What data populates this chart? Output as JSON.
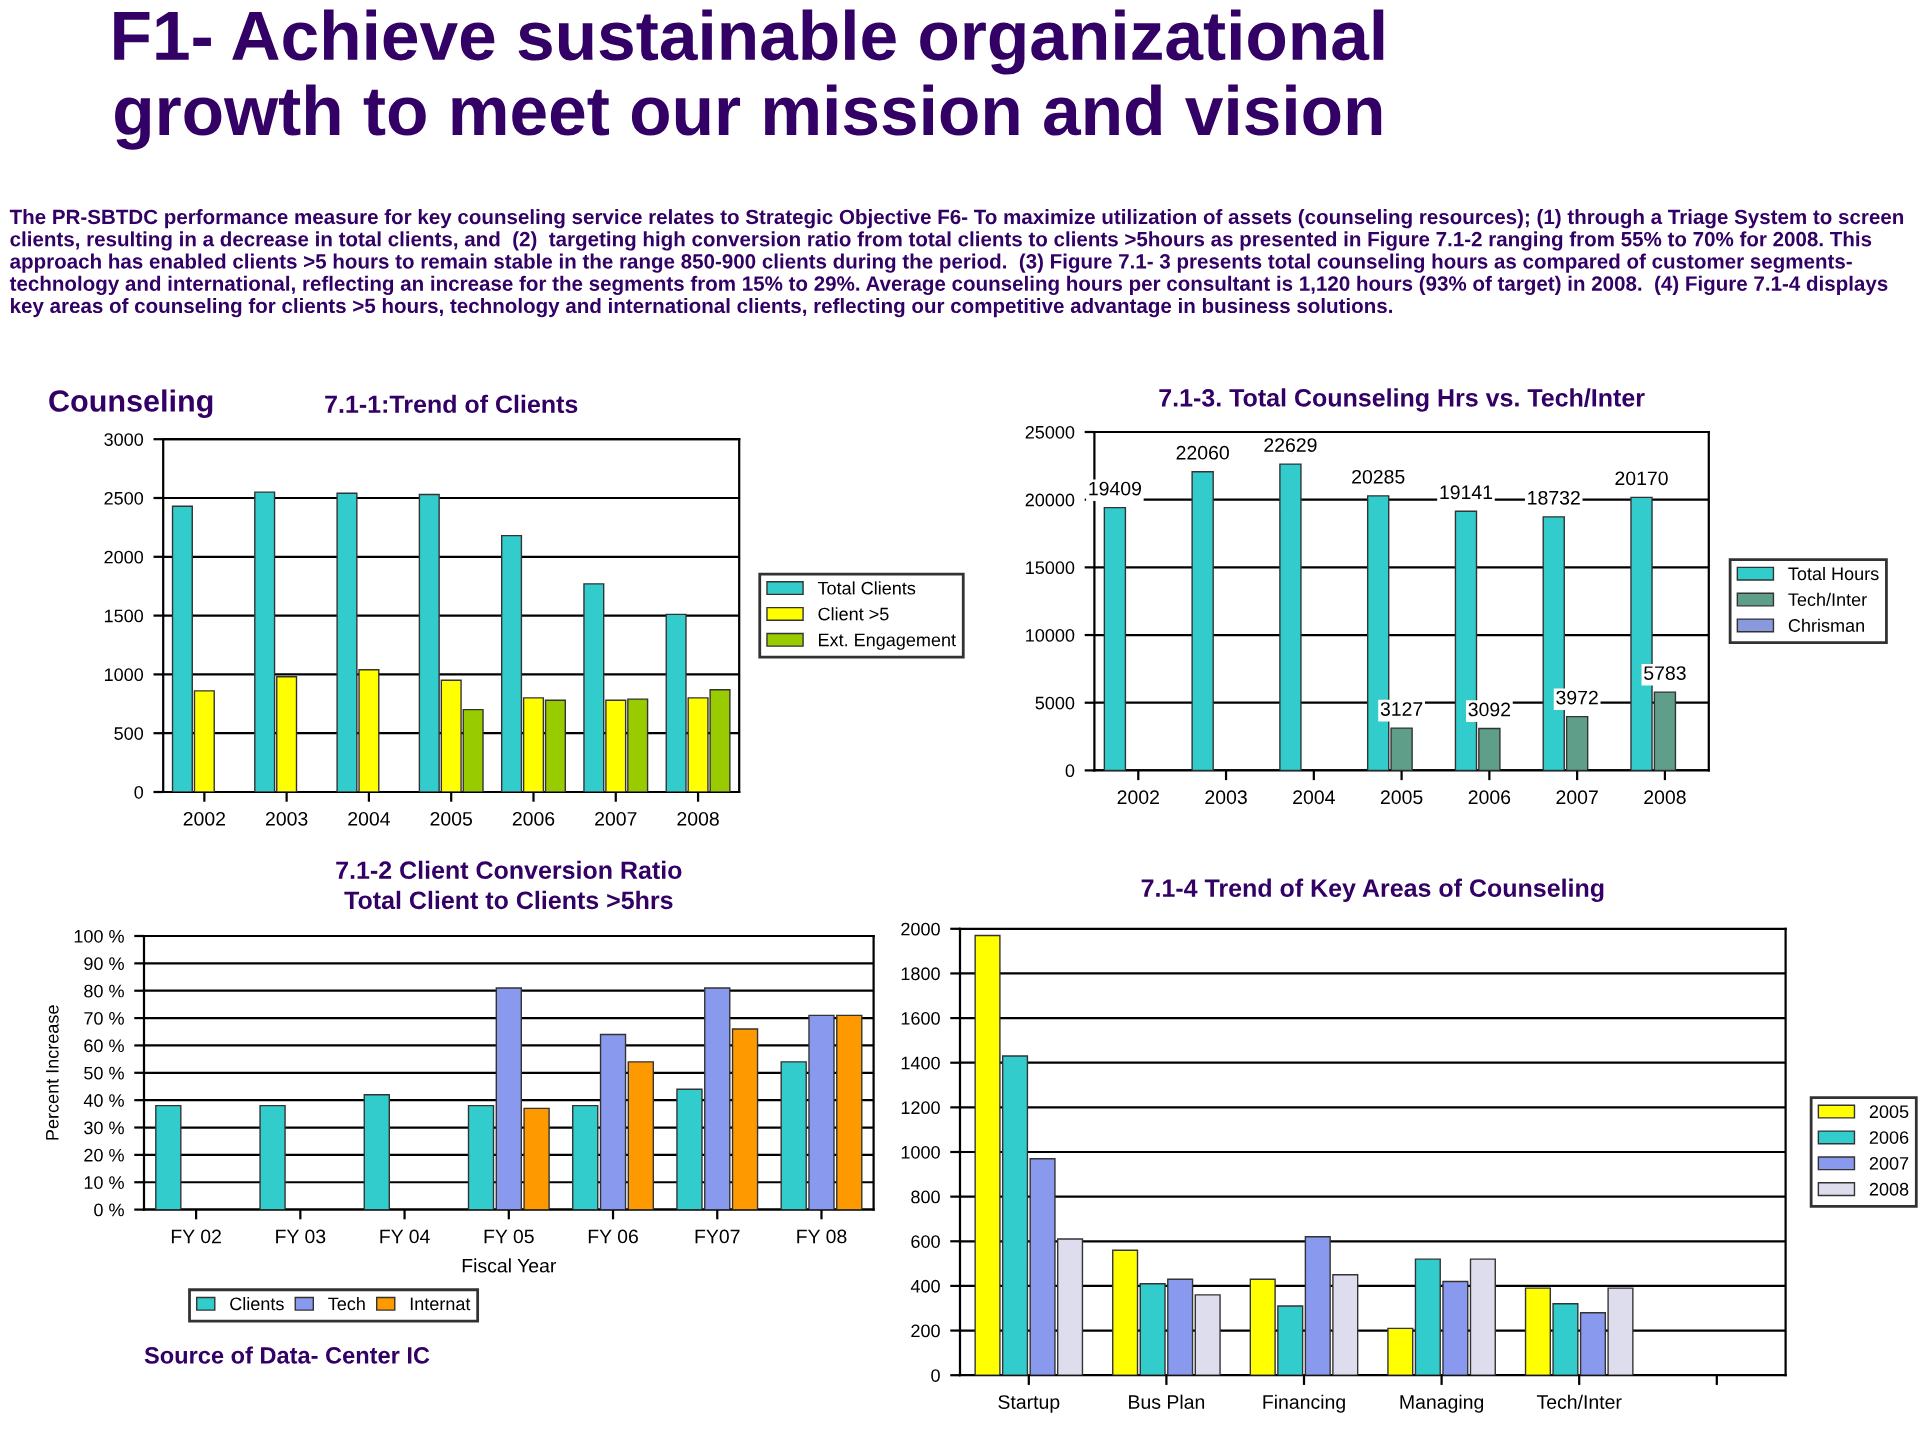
{
  "chart_data": [
    {
      "type": "other",
      "title": "F1- Achieve sustainable organizational growth to meet our mission and vision",
      "annotations": [
        "The PR-SBTDC performance measure for key counseling service relates to Strategic Objective F6- To maximize utilization of assets (counseling resources); (1) through a Triage System to screen clients, resulting in a decrease in total clients, and  (2)  targeting high conversion ratio from total clients to clients >5hours as presented in Figure 7.1-2 ranging from 55% to 70% for 2008. This approach has enabled clients >5 hours to remain stable in the range 850-900 clients during the period.  (3) Figure 7.1- 3 presents total counseling hours as compared of customer segments- technology and international, reflecting an increase for the segments from 15% to 29%. Average counseling hours per consultant is 1,120 hours (93% of target) in 2008.  (4) Figure 7.1-4 displays key areas of counseling for clients >5 hours, technology and international clients, reflecting our competitive advantage in business solutions."
      ]
    },
    {
      "type": "bar",
      "title": "7.1-1:Trend of Clients",
      "annotations": [
        "Counseling"
      ],
      "categories": [
        "2002",
        "2003",
        "2004",
        "2005",
        "2006",
        "2007",
        "2008"
      ],
      "series": [
        {
          "name": "Total Clients",
          "color": "#33cccc",
          "values": [
            2430,
            2550,
            2540,
            2530,
            2180,
            1770,
            1510
          ]
        },
        {
          "name": "Client >5",
          "color": "#ffff00",
          "values": [
            860,
            980,
            1040,
            950,
            800,
            780,
            800
          ]
        },
        {
          "name": "Ext. Engagement",
          "color": "#99cc00",
          "values": [
            null,
            null,
            null,
            700,
            780,
            790,
            870
          ]
        }
      ],
      "ylim": [
        0,
        3000
      ],
      "yticks": [
        0,
        500,
        1000,
        1500,
        2000,
        2500,
        3000
      ],
      "grid": "y",
      "legend": "right"
    },
    {
      "type": "bar",
      "title": "7.1-3. Total Counseling Hrs vs. Tech/Inter",
      "categories": [
        "2002",
        "2003",
        "2004",
        "2005",
        "2006",
        "2007",
        "2008"
      ],
      "series": [
        {
          "name": "Total Hours",
          "color": "#33cccc",
          "values": [
            19409,
            22060,
            22629,
            20285,
            19141,
            18732,
            20170
          ]
        },
        {
          "name": "Tech/Inter",
          "color": "#5f9f8a",
          "values": [
            null,
            null,
            null,
            3127,
            3092,
            3972,
            5783
          ]
        },
        {
          "name": "Chrisman",
          "color": "#8899dd",
          "values": [
            null,
            null,
            null,
            null,
            null,
            null,
            null
          ]
        }
      ],
      "ylim": [
        0,
        25000
      ],
      "yticks": [
        0,
        5000,
        10000,
        15000,
        20000,
        25000
      ],
      "grid": "y",
      "legend": "right",
      "data_labels": true
    },
    {
      "type": "bar",
      "title": "7.1-2 Client Conversion Ratio",
      "subtitle": "Total Client to Clients >5hrs",
      "xlabel": "Fiscal Year",
      "ylabel": "Percent Increase",
      "annotations": [
        "Source of Data- Center IC"
      ],
      "categories": [
        "FY 02",
        "FY 03",
        "FY 04",
        "FY 05",
        "FY 06",
        "FY07",
        "FY 08"
      ],
      "series": [
        {
          "name": "Clients",
          "color": "#33cccc",
          "values": [
            38,
            38,
            42,
            38,
            38,
            44,
            54
          ]
        },
        {
          "name": "Tech",
          "color": "#8899ee",
          "values": [
            null,
            null,
            null,
            81,
            64,
            81,
            71
          ]
        },
        {
          "name": "Internat",
          "color": "#ff9900",
          "values": [
            null,
            null,
            null,
            37,
            54,
            66,
            71
          ]
        }
      ],
      "ylim": [
        0,
        100
      ],
      "yticks": [
        {
          "value": 0,
          "label": "0 %"
        },
        {
          "value": 10,
          "label": "10 %"
        },
        {
          "value": 20,
          "label": "20 %"
        },
        {
          "value": 30,
          "label": "30 %"
        },
        {
          "value": 40,
          "label": "40 %"
        },
        {
          "value": 50,
          "label": "50 %"
        },
        {
          "value": 60,
          "label": "60 %"
        },
        {
          "value": 70,
          "label": "70 %"
        },
        {
          "value": 80,
          "label": "80 %"
        },
        {
          "value": 90,
          "label": "90 %"
        },
        {
          "value": 100,
          "label": "100 %"
        }
      ],
      "grid": "y",
      "legend": "bottom"
    },
    {
      "type": "bar",
      "title": "7.1-4 Trend of Key Areas of Counseling",
      "categories": [
        "Startup",
        "Bus Plan",
        "Financing",
        "Managing",
        "Tech/Inter",
        null
      ],
      "series": [
        {
          "name": "2005",
          "color": "#ffff00",
          "values": [
            1970,
            560,
            430,
            210,
            390,
            null
          ]
        },
        {
          "name": "2006",
          "color": "#33cccc",
          "values": [
            1430,
            410,
            310,
            520,
            320,
            null
          ]
        },
        {
          "name": "2007",
          "color": "#8899ee",
          "values": [
            970,
            430,
            620,
            420,
            280,
            null
          ]
        },
        {
          "name": "2008",
          "color": "#ddddee",
          "values": [
            610,
            360,
            450,
            520,
            390,
            null
          ]
        }
      ],
      "ylim": [
        0,
        2000
      ],
      "yticks": [
        0,
        200,
        400,
        600,
        800,
        1000,
        1200,
        1400,
        1600,
        1800,
        2000
      ],
      "grid": "y",
      "legend": "right"
    }
  ]
}
